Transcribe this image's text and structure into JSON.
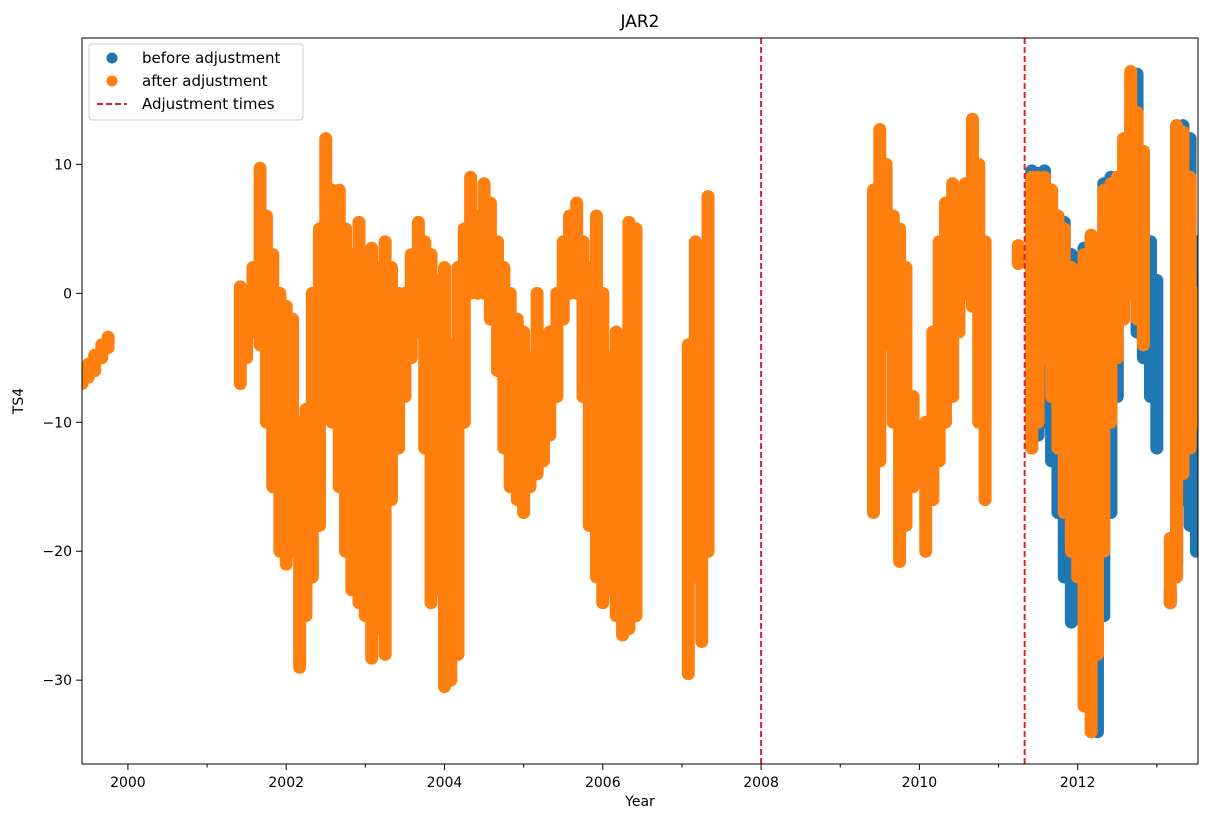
{
  "chart_data": {
    "type": "scatter",
    "title": "JAR2",
    "xlabel": "Year",
    "ylabel": "TS4",
    "xlim": [
      1999.42,
      2013.52
    ],
    "ylim": [
      -36.5,
      19.8
    ],
    "x_ticks": [
      2000,
      2002,
      2004,
      2006,
      2008,
      2010,
      2012
    ],
    "x_tick_labels": [
      "2000",
      "2002",
      "2004",
      "2006",
      "2008",
      "2010",
      "2012"
    ],
    "x_minor_ticks": [
      2001,
      2003,
      2005,
      2007,
      2009,
      2011,
      2013
    ],
    "y_ticks": [
      -30,
      -20,
      -10,
      0,
      10
    ],
    "y_tick_labels": [
      "−30",
      "−20",
      "−10",
      "0",
      "10"
    ],
    "grid": false,
    "legend_position": "upper-left",
    "legend": [
      {
        "label": "before adjustment",
        "kind": "marker",
        "color": "#1f77b4"
      },
      {
        "label": "after adjustment",
        "kind": "marker",
        "color": "#ff7f0e"
      },
      {
        "label": "Adjustment times",
        "kind": "dashed-line",
        "color": "#d62728"
      }
    ],
    "adjustment_times": [
      2008.0,
      2011.33
    ],
    "series": [
      {
        "name": "before adjustment",
        "color": "#1f77b4",
        "segments": [
          {
            "x": 2011.42,
            "y": [
              -12,
              9.5
            ]
          },
          {
            "x": 2011.5,
            "y": [
              -11,
              9.3
            ]
          },
          {
            "x": 2011.58,
            "y": [
              -10,
              9.5
            ]
          },
          {
            "x": 2011.67,
            "y": [
              -13,
              8
            ]
          },
          {
            "x": 2011.75,
            "y": [
              -17,
              6
            ]
          },
          {
            "x": 2011.83,
            "y": [
              -22,
              5.5
            ]
          },
          {
            "x": 2011.92,
            "y": [
              -25.5,
              3
            ]
          },
          {
            "x": 2012.0,
            "y": [
              -20,
              1
            ]
          },
          {
            "x": 2012.08,
            "y": [
              -12,
              3.5
            ]
          },
          {
            "x": 2012.17,
            "y": [
              -28,
              4.5
            ]
          },
          {
            "x": 2012.25,
            "y": [
              -34,
              4
            ]
          },
          {
            "x": 2012.33,
            "y": [
              -25,
              8.5
            ]
          },
          {
            "x": 2012.42,
            "y": [
              -17,
              9
            ]
          },
          {
            "x": 2012.5,
            "y": [
              -8,
              8
            ]
          },
          {
            "x": 2012.58,
            "y": [
              -2,
              10
            ]
          },
          {
            "x": 2012.67,
            "y": [
              0,
              13
            ]
          },
          {
            "x": 2012.75,
            "y": [
              -3,
              17
            ]
          },
          {
            "x": 2012.83,
            "y": [
              -5,
              11
            ]
          },
          {
            "x": 2012.92,
            "y": [
              -8,
              4
            ]
          },
          {
            "x": 2013.0,
            "y": [
              -12,
              1
            ]
          },
          {
            "x": 2013.17,
            "y": [
              -24,
              -23
            ]
          },
          {
            "x": 2013.25,
            "y": [
              -21,
              13
            ]
          },
          {
            "x": 2013.33,
            "y": [
              -16,
              13
            ]
          },
          {
            "x": 2013.42,
            "y": [
              -18,
              12
            ]
          },
          {
            "x": 2013.5,
            "y": [
              -20,
              4
            ]
          }
        ]
      },
      {
        "name": "after adjustment",
        "color": "#ff7f0e",
        "segments": [
          {
            "x": 1999.42,
            "y": [
              -7,
              -6
            ]
          },
          {
            "x": 1999.5,
            "y": [
              -6.5,
              -5.5
            ]
          },
          {
            "x": 1999.58,
            "y": [
              -6,
              -4.8
            ]
          },
          {
            "x": 1999.67,
            "y": [
              -5,
              -4
            ]
          },
          {
            "x": 1999.75,
            "y": [
              -4.2,
              -3.4
            ]
          },
          {
            "x": 2001.42,
            "y": [
              -7,
              0.5
            ]
          },
          {
            "x": 2001.5,
            "y": [
              -5,
              0
            ]
          },
          {
            "x": 2001.58,
            "y": [
              -3,
              2
            ]
          },
          {
            "x": 2001.67,
            "y": [
              -4,
              9.7
            ]
          },
          {
            "x": 2001.75,
            "y": [
              -10,
              6
            ]
          },
          {
            "x": 2001.83,
            "y": [
              -15,
              3
            ]
          },
          {
            "x": 2001.92,
            "y": [
              -20,
              0
            ]
          },
          {
            "x": 2002.0,
            "y": [
              -21,
              -1
            ]
          },
          {
            "x": 2002.08,
            "y": [
              -20,
              -2
            ]
          },
          {
            "x": 2002.17,
            "y": [
              -29,
              -10
            ]
          },
          {
            "x": 2002.25,
            "y": [
              -25,
              -9
            ]
          },
          {
            "x": 2002.33,
            "y": [
              -22,
              0
            ]
          },
          {
            "x": 2002.42,
            "y": [
              -18,
              5
            ]
          },
          {
            "x": 2002.5,
            "y": [
              -5,
              12
            ]
          },
          {
            "x": 2002.58,
            "y": [
              -10,
              8
            ]
          },
          {
            "x": 2002.67,
            "y": [
              -15,
              8
            ]
          },
          {
            "x": 2002.75,
            "y": [
              -20,
              5
            ]
          },
          {
            "x": 2002.83,
            "y": [
              -23,
              3
            ]
          },
          {
            "x": 2002.92,
            "y": [
              -24,
              5.5
            ]
          },
          {
            "x": 2003.0,
            "y": [
              -25,
              3
            ]
          },
          {
            "x": 2003.08,
            "y": [
              -28.3,
              3.5
            ]
          },
          {
            "x": 2003.17,
            "y": [
              -26,
              2
            ]
          },
          {
            "x": 2003.25,
            "y": [
              -28,
              4
            ]
          },
          {
            "x": 2003.33,
            "y": [
              -16,
              2
            ]
          },
          {
            "x": 2003.42,
            "y": [
              -12,
              0
            ]
          },
          {
            "x": 2003.5,
            "y": [
              -8,
              0
            ]
          },
          {
            "x": 2003.58,
            "y": [
              -5,
              3
            ]
          },
          {
            "x": 2003.67,
            "y": [
              -3,
              5.5
            ]
          },
          {
            "x": 2003.75,
            "y": [
              -12,
              4
            ]
          },
          {
            "x": 2003.83,
            "y": [
              -24,
              3
            ]
          },
          {
            "x": 2003.92,
            "y": [
              -23,
              1
            ]
          },
          {
            "x": 2004.0,
            "y": [
              -30.5,
              2
            ]
          },
          {
            "x": 2004.08,
            "y": [
              -30,
              -4
            ]
          },
          {
            "x": 2004.17,
            "y": [
              -28,
              2
            ]
          },
          {
            "x": 2004.25,
            "y": [
              -10,
              5
            ]
          },
          {
            "x": 2004.33,
            "y": [
              0,
              9
            ]
          },
          {
            "x": 2004.42,
            "y": [
              0,
              6
            ]
          },
          {
            "x": 2004.5,
            "y": [
              0,
              8.5
            ]
          },
          {
            "x": 2004.58,
            "y": [
              -2,
              7
            ]
          },
          {
            "x": 2004.67,
            "y": [
              -6,
              4
            ]
          },
          {
            "x": 2004.75,
            "y": [
              -12,
              2
            ]
          },
          {
            "x": 2004.83,
            "y": [
              -15,
              0
            ]
          },
          {
            "x": 2004.92,
            "y": [
              -16,
              -2
            ]
          },
          {
            "x": 2005.0,
            "y": [
              -17,
              -3
            ]
          },
          {
            "x": 2005.08,
            "y": [
              -15,
              -5
            ]
          },
          {
            "x": 2005.17,
            "y": [
              -14,
              0
            ]
          },
          {
            "x": 2005.25,
            "y": [
              -13,
              -8
            ]
          },
          {
            "x": 2005.33,
            "y": [
              -11,
              -3
            ]
          },
          {
            "x": 2005.42,
            "y": [
              -8,
              0
            ]
          },
          {
            "x": 2005.5,
            "y": [
              -2,
              4
            ]
          },
          {
            "x": 2005.58,
            "y": [
              0,
              6
            ]
          },
          {
            "x": 2005.67,
            "y": [
              0,
              7
            ]
          },
          {
            "x": 2005.75,
            "y": [
              -8,
              4
            ]
          },
          {
            "x": 2005.83,
            "y": [
              -18,
              2
            ]
          },
          {
            "x": 2005.92,
            "y": [
              -22,
              6
            ]
          },
          {
            "x": 2006.0,
            "y": [
              -24,
              0
            ]
          },
          {
            "x": 2006.08,
            "y": [
              -23,
              -5
            ]
          },
          {
            "x": 2006.17,
            "y": [
              -25,
              -3
            ]
          },
          {
            "x": 2006.25,
            "y": [
              -26.5,
              -5
            ]
          },
          {
            "x": 2006.33,
            "y": [
              -26,
              5.5
            ]
          },
          {
            "x": 2006.42,
            "y": [
              -25,
              5
            ]
          },
          {
            "x": 2007.08,
            "y": [
              -29.5,
              -4
            ]
          },
          {
            "x": 2007.17,
            "y": [
              -22,
              4
            ]
          },
          {
            "x": 2007.25,
            "y": [
              -27,
              3.5
            ]
          },
          {
            "x": 2007.33,
            "y": [
              -20,
              7.5
            ]
          },
          {
            "x": 2009.42,
            "y": [
              -17,
              8
            ]
          },
          {
            "x": 2009.5,
            "y": [
              -13,
              12.7
            ]
          },
          {
            "x": 2009.58,
            "y": [
              -4,
              10
            ]
          },
          {
            "x": 2009.67,
            "y": [
              -10,
              6
            ]
          },
          {
            "x": 2009.75,
            "y": [
              -20.8,
              5
            ]
          },
          {
            "x": 2009.83,
            "y": [
              -18,
              2
            ]
          },
          {
            "x": 2009.92,
            "y": [
              -15,
              -8
            ]
          },
          {
            "x": 2010.08,
            "y": [
              -20,
              -10
            ]
          },
          {
            "x": 2010.17,
            "y": [
              -16,
              -3
            ]
          },
          {
            "x": 2010.25,
            "y": [
              -13,
              4
            ]
          },
          {
            "x": 2010.33,
            "y": [
              -10,
              7
            ]
          },
          {
            "x": 2010.42,
            "y": [
              -8,
              8.5
            ]
          },
          {
            "x": 2010.5,
            "y": [
              -3,
              8
            ]
          },
          {
            "x": 2010.58,
            "y": [
              0,
              8.5
            ]
          },
          {
            "x": 2010.67,
            "y": [
              -1,
              13.5
            ]
          },
          {
            "x": 2010.75,
            "y": [
              -10,
              10
            ]
          },
          {
            "x": 2010.83,
            "y": [
              -16,
              4
            ]
          },
          {
            "x": 2011.25,
            "y": [
              2.3,
              3.7
            ]
          },
          {
            "x": 2011.42,
            "y": [
              -12,
              9
            ]
          },
          {
            "x": 2011.5,
            "y": [
              -10,
              9
            ]
          },
          {
            "x": 2011.58,
            "y": [
              -5,
              9
            ]
          },
          {
            "x": 2011.67,
            "y": [
              -8,
              8
            ]
          },
          {
            "x": 2011.75,
            "y": [
              -12,
              6
            ]
          },
          {
            "x": 2011.83,
            "y": [
              -17,
              5
            ]
          },
          {
            "x": 2011.92,
            "y": [
              -20,
              2
            ]
          },
          {
            "x": 2012.0,
            "y": [
              -22,
              1
            ]
          },
          {
            "x": 2012.08,
            "y": [
              -32,
              3
            ]
          },
          {
            "x": 2012.17,
            "y": [
              -34,
              4.5
            ]
          },
          {
            "x": 2012.25,
            "y": [
              -28,
              4
            ]
          },
          {
            "x": 2012.33,
            "y": [
              -20,
              8
            ]
          },
          {
            "x": 2012.42,
            "y": [
              -10,
              8.5
            ]
          },
          {
            "x": 2012.5,
            "y": [
              -5,
              9
            ]
          },
          {
            "x": 2012.58,
            "y": [
              -2,
              12
            ]
          },
          {
            "x": 2012.67,
            "y": [
              0,
              17.2
            ]
          },
          {
            "x": 2012.75,
            "y": [
              -2,
              14
            ]
          },
          {
            "x": 2012.83,
            "y": [
              -4,
              11
            ]
          },
          {
            "x": 2013.17,
            "y": [
              -24,
              -19
            ]
          },
          {
            "x": 2013.25,
            "y": [
              -22,
              13
            ]
          },
          {
            "x": 2013.33,
            "y": [
              -14,
              12.5
            ]
          },
          {
            "x": 2013.42,
            "y": [
              -12,
              9
            ]
          },
          {
            "x": 2013.5,
            "y": [
              -10,
              0
            ]
          }
        ]
      }
    ]
  }
}
